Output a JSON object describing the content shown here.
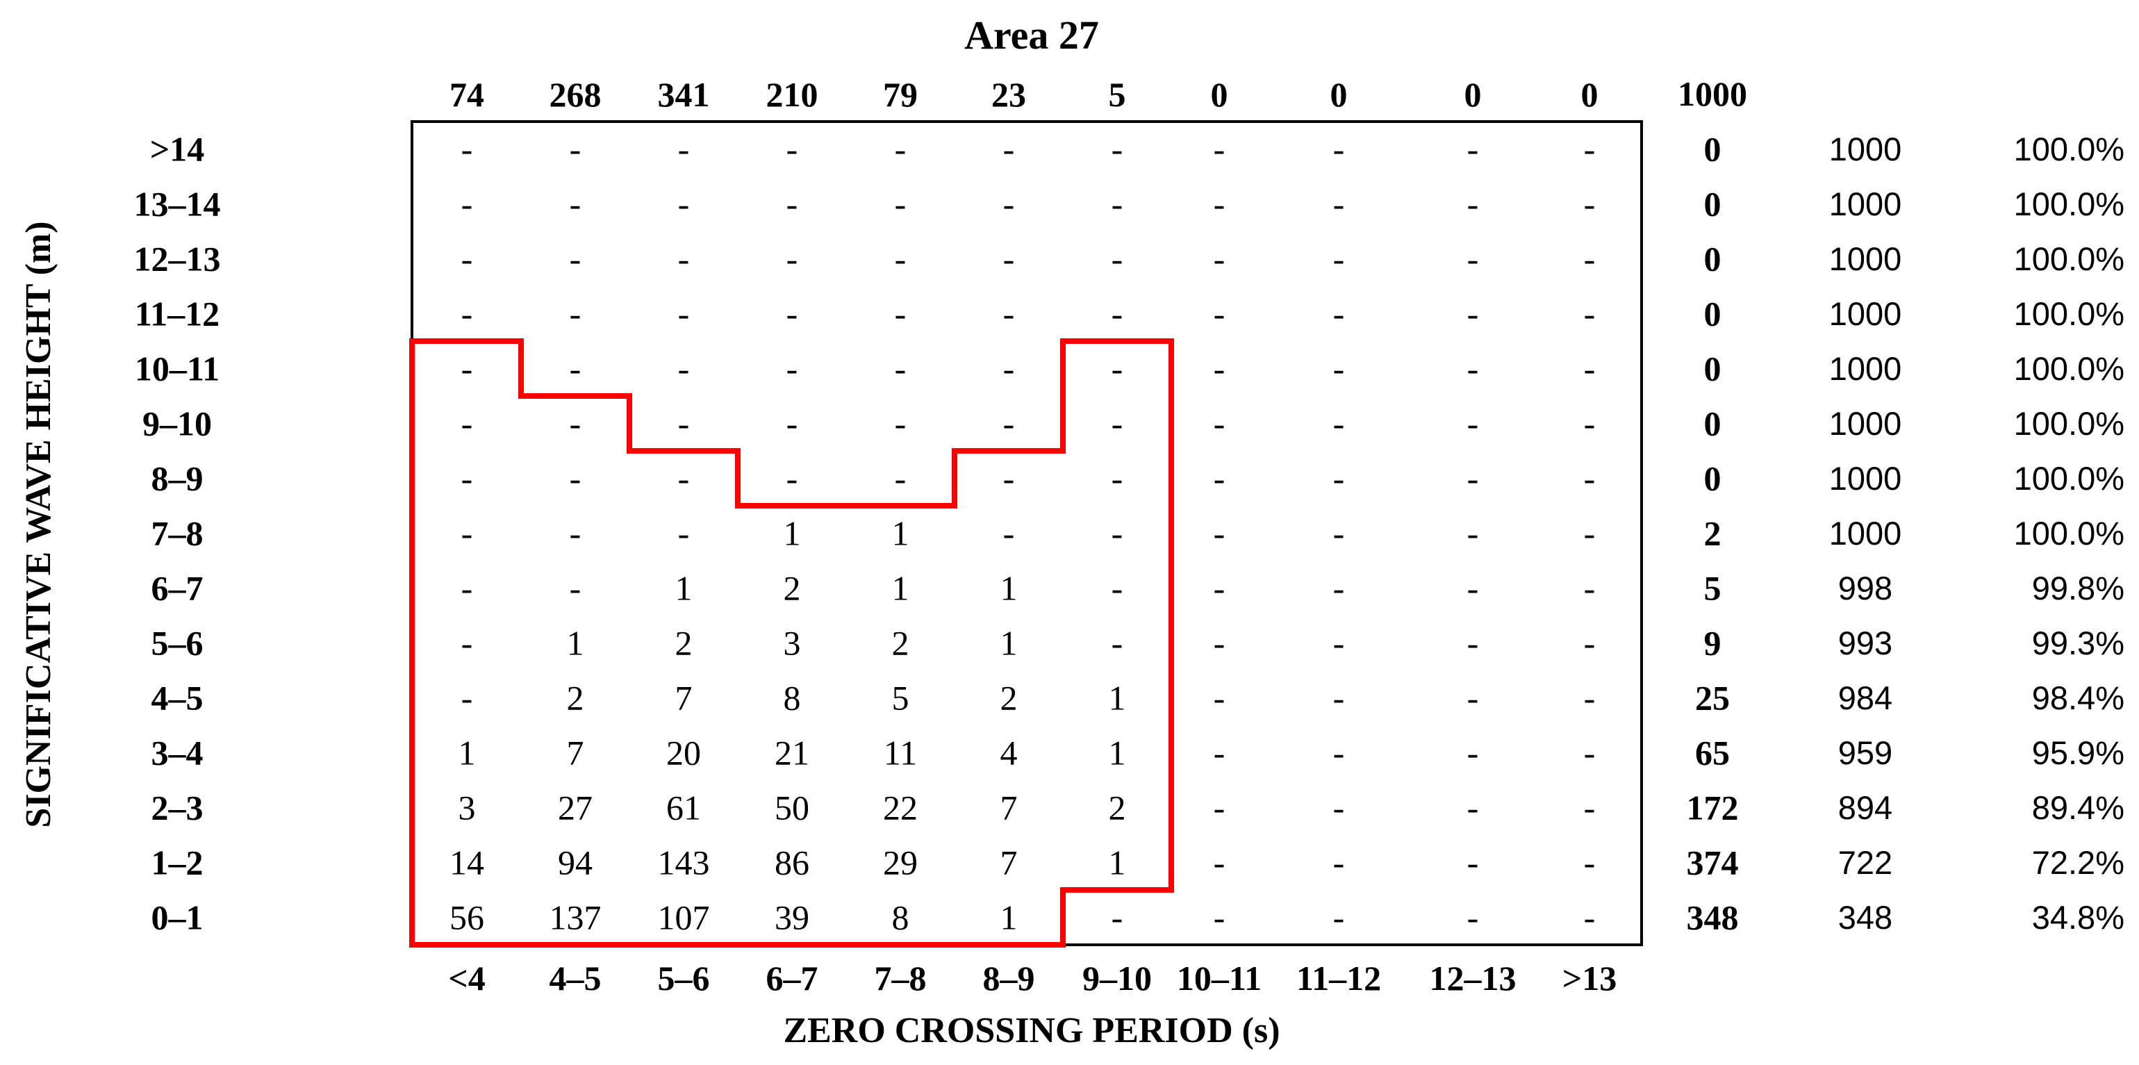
{
  "chart_data": {
    "type": "table",
    "title": "Area 27",
    "xlabel": "ZERO CROSSING PERIOD (s)",
    "ylabel": "SIGNIFICATIVE WAVE HEIGHT (m)",
    "columns": [
      "<4",
      "4–5",
      "5–6",
      "6–7",
      "7–8",
      "8–9",
      "9–10",
      "10–11",
      "11–12",
      "12–13",
      ">13"
    ],
    "column_totals": [
      "74",
      "268",
      "341",
      "210",
      "79",
      "23",
      "5",
      "0",
      "0",
      "0",
      "0"
    ],
    "grand_total": "1000",
    "rows": [
      {
        "label": ">14",
        "cells": [
          "-",
          "-",
          "-",
          "-",
          "-",
          "-",
          "-",
          "-",
          "-",
          "-",
          "-"
        ],
        "total": "0",
        "cumulative": "1000",
        "percent": "100.0%"
      },
      {
        "label": "13–14",
        "cells": [
          "-",
          "-",
          "-",
          "-",
          "-",
          "-",
          "-",
          "-",
          "-",
          "-",
          "-"
        ],
        "total": "0",
        "cumulative": "1000",
        "percent": "100.0%"
      },
      {
        "label": "12–13",
        "cells": [
          "-",
          "-",
          "-",
          "-",
          "-",
          "-",
          "-",
          "-",
          "-",
          "-",
          "-"
        ],
        "total": "0",
        "cumulative": "1000",
        "percent": "100.0%"
      },
      {
        "label": "11–12",
        "cells": [
          "-",
          "-",
          "-",
          "-",
          "-",
          "-",
          "-",
          "-",
          "-",
          "-",
          "-"
        ],
        "total": "0",
        "cumulative": "1000",
        "percent": "100.0%"
      },
      {
        "label": "10–11",
        "cells": [
          "-",
          "-",
          "-",
          "-",
          "-",
          "-",
          "-",
          "-",
          "-",
          "-",
          "-"
        ],
        "total": "0",
        "cumulative": "1000",
        "percent": "100.0%"
      },
      {
        "label": "9–10",
        "cells": [
          "-",
          "-",
          "-",
          "-",
          "-",
          "-",
          "-",
          "-",
          "-",
          "-",
          "-"
        ],
        "total": "0",
        "cumulative": "1000",
        "percent": "100.0%"
      },
      {
        "label": "8–9",
        "cells": [
          "-",
          "-",
          "-",
          "-",
          "-",
          "-",
          "-",
          "-",
          "-",
          "-",
          "-"
        ],
        "total": "0",
        "cumulative": "1000",
        "percent": "100.0%"
      },
      {
        "label": "7–8",
        "cells": [
          "-",
          "-",
          "-",
          "1",
          "1",
          "-",
          "-",
          "-",
          "-",
          "-",
          "-"
        ],
        "total": "2",
        "cumulative": "1000",
        "percent": "100.0%"
      },
      {
        "label": "6–7",
        "cells": [
          "-",
          "-",
          "1",
          "2",
          "1",
          "1",
          "-",
          "-",
          "-",
          "-",
          "-"
        ],
        "total": "5",
        "cumulative": "998",
        "percent": "99.8%"
      },
      {
        "label": "5–6",
        "cells": [
          "-",
          "1",
          "2",
          "3",
          "2",
          "1",
          "-",
          "-",
          "-",
          "-",
          "-"
        ],
        "total": "9",
        "cumulative": "993",
        "percent": "99.3%"
      },
      {
        "label": "4–5",
        "cells": [
          "-",
          "2",
          "7",
          "8",
          "5",
          "2",
          "1",
          "-",
          "-",
          "-",
          "-"
        ],
        "total": "25",
        "cumulative": "984",
        "percent": "98.4%"
      },
      {
        "label": "3–4",
        "cells": [
          "1",
          "7",
          "20",
          "21",
          "11",
          "4",
          "1",
          "-",
          "-",
          "-",
          "-"
        ],
        "total": "65",
        "cumulative": "959",
        "percent": "95.9%"
      },
      {
        "label": "2–3",
        "cells": [
          "3",
          "27",
          "61",
          "50",
          "22",
          "7",
          "2",
          "-",
          "-",
          "-",
          "-"
        ],
        "total": "172",
        "cumulative": "894",
        "percent": "89.4%"
      },
      {
        "label": "1–2",
        "cells": [
          "14",
          "94",
          "143",
          "86",
          "29",
          "7",
          "1",
          "-",
          "-",
          "-",
          "-"
        ],
        "total": "374",
        "cumulative": "722",
        "percent": "72.2%"
      },
      {
        "label": "0–1",
        "cells": [
          "56",
          "137",
          "107",
          "39",
          "8",
          "1",
          "-",
          "-",
          "-",
          "-",
          "-"
        ],
        "total": "348",
        "cumulative": "348",
        "percent": "34.8%"
      }
    ],
    "highlight_color": "#ff0000",
    "highlight_tops": [
      4,
      5,
      6,
      7,
      7,
      6,
      4
    ],
    "highlight_bottoms": [
      14,
      14,
      14,
      14,
      14,
      14,
      13
    ]
  }
}
